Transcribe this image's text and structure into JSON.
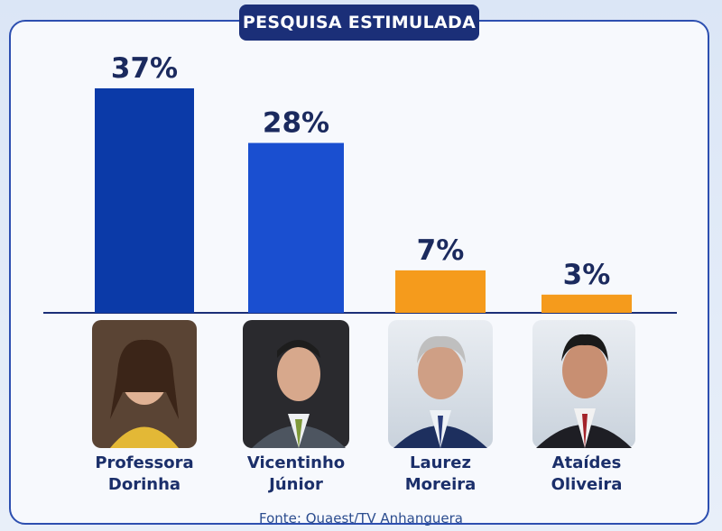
{
  "chart_data": {
    "type": "bar",
    "title": "PESQUISA ESTIMULADA",
    "categories": [
      "Professora Dorinha",
      "Vicentinho Júnior",
      "Laurez Moreira",
      "Ataídes Oliveira"
    ],
    "values": [
      37,
      28,
      7,
      3
    ],
    "value_labels": [
      "37%",
      "28%",
      "7%",
      "3%"
    ],
    "colors": [
      "#0b3aa8",
      "#1a4fd0",
      "#f59b1c",
      "#f59b1c"
    ],
    "source": "Fonte: Quaest/TV Anhanguera"
  }
}
